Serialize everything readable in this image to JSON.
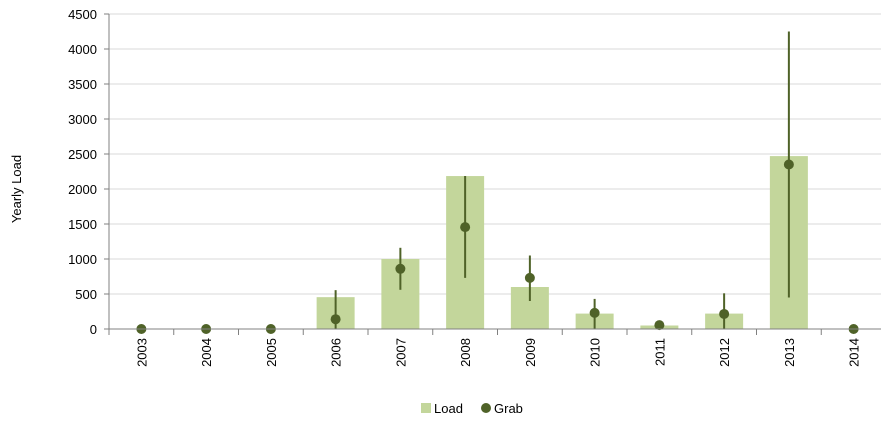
{
  "chart_data": {
    "type": "bar",
    "categories": [
      "2003",
      "2004",
      "2005",
      "2006",
      "2007",
      "2008",
      "2009",
      "2010",
      "2011",
      "2012",
      "2013",
      "2014"
    ],
    "series": [
      {
        "name": "Load",
        "type": "bar",
        "color": "#c3d69b",
        "values": [
          0,
          0,
          0,
          455,
          1000,
          2185,
          600,
          220,
          50,
          220,
          2470,
          0
        ]
      },
      {
        "name": "Grab",
        "type": "scatter",
        "color": "#4f6228",
        "values": [
          0,
          0,
          0,
          140,
          860,
          1455,
          730,
          230,
          55,
          215,
          2350,
          0
        ],
        "error_low": [
          0,
          0,
          0,
          0,
          560,
          730,
          400,
          0,
          30,
          0,
          450,
          0
        ],
        "error_high": [
          0,
          0,
          0,
          555,
          1160,
          2185,
          1050,
          430,
          85,
          510,
          4250,
          0
        ]
      }
    ],
    "xlabel": "",
    "ylabel": "Yearly Load",
    "ylim": [
      0,
      4500
    ],
    "yticks": [
      0,
      500,
      1000,
      1500,
      2000,
      2500,
      3000,
      3500,
      4000,
      4500
    ],
    "grid": true,
    "legend": "bottom-center"
  }
}
